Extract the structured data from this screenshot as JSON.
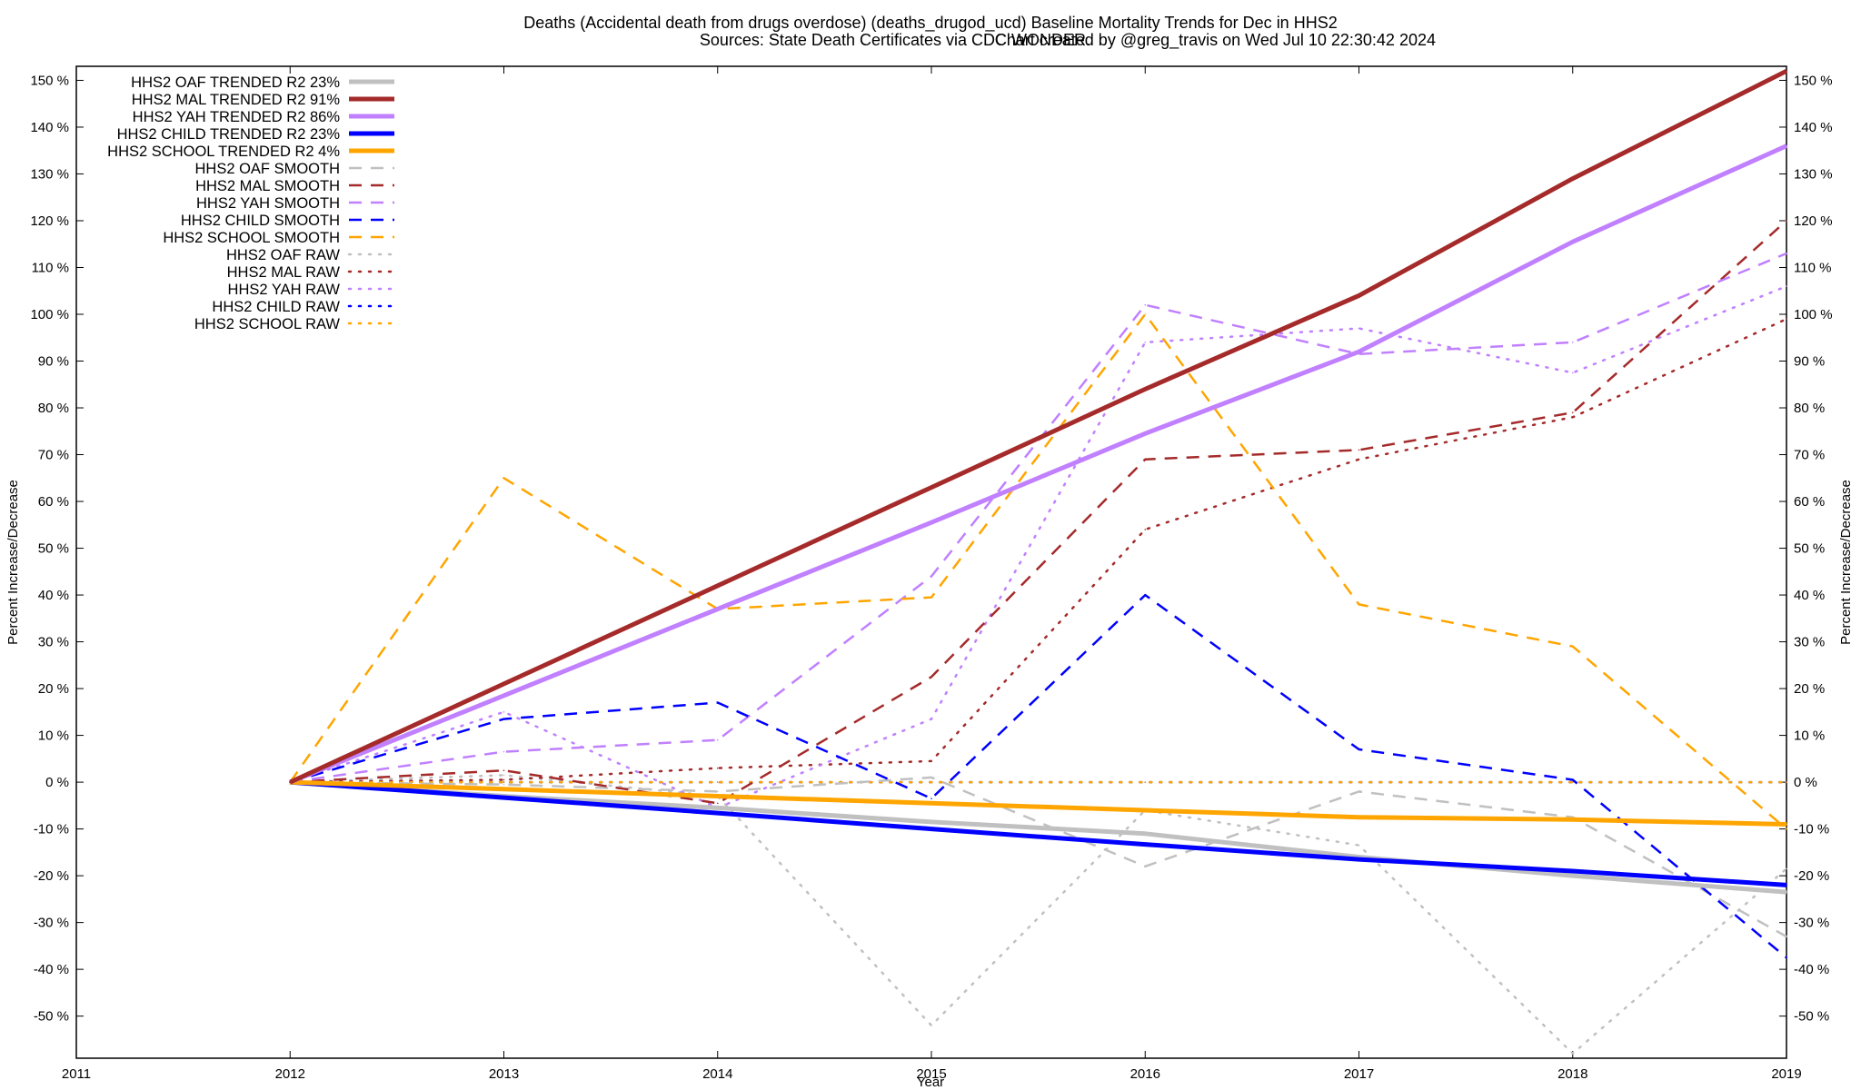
{
  "chart_data": {
    "type": "line",
    "title": "Deaths (Accidental death from drugs overdose) (deaths_drugod_ucd)  Baseline Mortality Trends for Dec in HHS2",
    "subtitle_left": "Sources: State Death Certificates via CDC WONDER.",
    "subtitle_right": "Chart created by @greg_travis on Wed Jul 10 22:30:42 2024",
    "xlabel": "Year",
    "ylabel": "Percent Increase/Decrease",
    "y2label": "Percent Increase/Decrease",
    "xlim": [
      2011,
      2019
    ],
    "ylim": [
      -59,
      153
    ],
    "x_ticks": [
      "2011",
      "2012",
      "2013",
      "2014",
      "2015",
      "2016",
      "2017",
      "2018",
      "2019"
    ],
    "y_ticks": [
      "150 %",
      "140 %",
      "130 %",
      "120 %",
      "110 %",
      "100 %",
      "90 %",
      "80 %",
      "70 %",
      "60 %",
      "50 %",
      "40 %",
      "30 %",
      "20 %",
      "10 %",
      "0 %",
      "-10 %",
      "-20 %",
      "-30 %",
      "-40 %",
      "-50 %"
    ],
    "y_tick_values": [
      150,
      140,
      130,
      120,
      110,
      100,
      90,
      80,
      70,
      60,
      50,
      40,
      30,
      20,
      10,
      0,
      -10,
      -20,
      -30,
      -40,
      -50
    ],
    "grid": false,
    "legend_position": "top-left",
    "x": [
      2012,
      2013,
      2014,
      2015,
      2016,
      2017,
      2018,
      2019
    ],
    "series": [
      {
        "name": "HHS2 OAF TRENDED R2  23%",
        "color": "#c0c0c0",
        "style": "solid",
        "width": 5,
        "values": [
          0,
          -3,
          -5.5,
          -8.5,
          -11,
          -16,
          -20,
          -23.5
        ]
      },
      {
        "name": "HHS2 MAL TRENDED R2  91%",
        "color": "#a52a2a",
        "style": "solid",
        "width": 5,
        "values": [
          0,
          21,
          42,
          63,
          84,
          104,
          129,
          152
        ]
      },
      {
        "name": "HHS2 YAH TRENDED R2  86%",
        "color": "#c080ff",
        "style": "solid",
        "width": 5,
        "values": [
          0,
          18.5,
          37,
          55.5,
          74.5,
          92,
          115.5,
          136
        ]
      },
      {
        "name": "HHS2 CHILD TRENDED R2  23%",
        "color": "#0000ff",
        "style": "solid",
        "width": 5,
        "values": [
          0,
          -3.3,
          -6.6,
          -10,
          -13.3,
          -16.5,
          -19,
          -22
        ]
      },
      {
        "name": "HHS2 SCHOOL TRENDED R2   4%",
        "color": "#ffa500",
        "style": "solid",
        "width": 5,
        "values": [
          0,
          -1.5,
          -3,
          -4.5,
          -6,
          -7.5,
          -8,
          -9
        ]
      },
      {
        "name": "HHS2 OAF SMOOTH",
        "color": "#c0c0c0",
        "style": "dashed",
        "width": 2.5,
        "values": [
          0,
          -0.5,
          -2,
          1,
          -18,
          -2,
          -7.5,
          -33
        ]
      },
      {
        "name": "HHS2 MAL SMOOTH",
        "color": "#a52a2a",
        "style": "dashed",
        "width": 2.5,
        "values": [
          0,
          2.5,
          -4.5,
          22.5,
          69,
          71,
          79,
          120
        ]
      },
      {
        "name": "HHS2 YAH SMOOTH",
        "color": "#c080ff",
        "style": "dashed",
        "width": 2.5,
        "values": [
          0,
          6.5,
          9,
          44,
          102,
          91.5,
          94,
          113
        ]
      },
      {
        "name": "HHS2 CHILD SMOOTH",
        "color": "#0000ff",
        "style": "dashed",
        "width": 2.5,
        "values": [
          0,
          13.5,
          17,
          -3.5,
          40,
          7,
          0.5,
          -37.5
        ]
      },
      {
        "name": "HHS2 SCHOOL SMOOTH",
        "color": "#ffa500",
        "style": "dashed",
        "width": 2.5,
        "values": [
          0,
          65,
          37,
          39.5,
          100,
          38,
          29,
          -10
        ]
      },
      {
        "name": "HHS2 OAF RAW",
        "color": "#c0c0c0",
        "style": "dotted",
        "width": 2.5,
        "values": [
          0,
          1.5,
          -3,
          -52,
          -6,
          -13.5,
          -58,
          -18.5
        ]
      },
      {
        "name": "HHS2 MAL RAW",
        "color": "#a52a2a",
        "style": "dotted",
        "width": 2.5,
        "values": [
          0,
          0.5,
          3,
          4.5,
          54,
          69,
          78,
          99
        ]
      },
      {
        "name": "HHS2 YAH RAW",
        "color": "#c080ff",
        "style": "dotted",
        "width": 2.5,
        "values": [
          0,
          15,
          -5.5,
          13.5,
          94,
          97,
          87.5,
          106
        ]
      },
      {
        "name": "HHS2 CHILD RAW",
        "color": "#0000ff",
        "style": "dotted",
        "width": 2.5,
        "values": [
          0,
          0,
          0,
          0,
          0,
          0,
          0,
          0
        ]
      },
      {
        "name": "HHS2 SCHOOL RAW",
        "color": "#ffa500",
        "style": "dotted",
        "width": 2.5,
        "values": [
          0,
          0,
          0,
          0,
          0,
          0,
          0,
          0
        ]
      }
    ]
  }
}
